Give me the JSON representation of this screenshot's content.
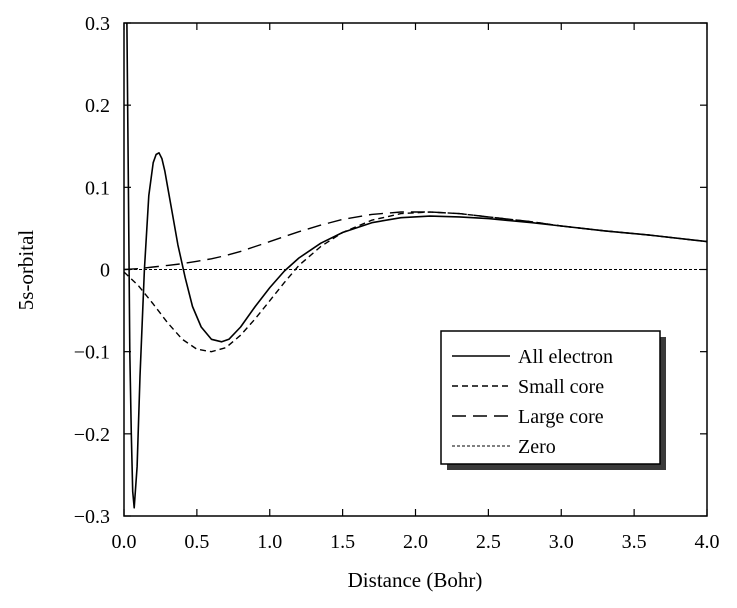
{
  "chart_data": {
    "type": "line",
    "title": "",
    "xlabel": "Distance (Bohr)",
    "ylabel": "5s-orbital",
    "xlim": [
      0,
      4.0
    ],
    "ylim": [
      -0.3,
      0.3
    ],
    "x_ticks": [
      0.0,
      0.5,
      1.0,
      1.5,
      2.0,
      2.5,
      3.0,
      3.5,
      4.0
    ],
    "x_tick_labels": [
      "0.0",
      "0.5",
      "1.0",
      "1.5",
      "2.0",
      "2.5",
      "3.0",
      "3.5",
      "4.0"
    ],
    "y_ticks": [
      -0.3,
      -0.2,
      -0.1,
      0,
      0.1,
      0.2,
      0.3
    ],
    "y_tick_labels": [
      "−0.3",
      "−0.2",
      "−0.1",
      "0",
      "0.1",
      "0.2",
      "0.3"
    ],
    "grid": false,
    "legend_position": "lower-right",
    "series": [
      {
        "name": "All electron",
        "style": "solid",
        "x": [
          0.02,
          0.03,
          0.04,
          0.05,
          0.06,
          0.07,
          0.09,
          0.11,
          0.14,
          0.17,
          0.2,
          0.22,
          0.24,
          0.26,
          0.28,
          0.3,
          0.33,
          0.37,
          0.42,
          0.47,
          0.53,
          0.6,
          0.67,
          0.72,
          0.8,
          0.9,
          1.0,
          1.1,
          1.2,
          1.35,
          1.5,
          1.7,
          1.9,
          2.1,
          2.3,
          2.5,
          2.8,
          3.0,
          3.3,
          3.6,
          4.0
        ],
        "y": [
          0.3,
          0.1,
          -0.1,
          -0.2,
          -0.27,
          -0.29,
          -0.24,
          -0.13,
          0.0,
          0.09,
          0.13,
          0.14,
          0.142,
          0.135,
          0.12,
          0.1,
          0.07,
          0.03,
          -0.01,
          -0.045,
          -0.07,
          -0.085,
          -0.088,
          -0.085,
          -0.07,
          -0.045,
          -0.022,
          -0.002,
          0.014,
          0.032,
          0.045,
          0.057,
          0.063,
          0.065,
          0.064,
          0.062,
          0.057,
          0.053,
          0.047,
          0.042,
          0.034
        ]
      },
      {
        "name": "Small core",
        "style": "short-dash",
        "x": [
          0.0,
          0.1,
          0.2,
          0.3,
          0.4,
          0.5,
          0.6,
          0.7,
          0.8,
          0.9,
          1.0,
          1.1,
          1.2,
          1.35,
          1.5,
          1.7,
          1.9,
          2.1,
          2.3,
          2.5,
          2.8,
          3.0,
          3.3,
          3.6,
          4.0
        ],
        "y": [
          -0.003,
          -0.02,
          -0.042,
          -0.065,
          -0.085,
          -0.097,
          -0.1,
          -0.095,
          -0.08,
          -0.06,
          -0.038,
          -0.016,
          0.005,
          0.028,
          0.045,
          0.06,
          0.068,
          0.07,
          0.068,
          0.064,
          0.058,
          0.053,
          0.047,
          0.042,
          0.034
        ]
      },
      {
        "name": "Large core",
        "style": "long-dash",
        "x": [
          0.0,
          0.1,
          0.2,
          0.3,
          0.4,
          0.5,
          0.6,
          0.7,
          0.8,
          0.9,
          1.0,
          1.1,
          1.2,
          1.35,
          1.5,
          1.7,
          1.9,
          2.1,
          2.3,
          2.5,
          2.8,
          3.0,
          3.3,
          3.6,
          4.0
        ],
        "y": [
          0.0,
          0.001,
          0.003,
          0.005,
          0.007,
          0.01,
          0.013,
          0.017,
          0.022,
          0.028,
          0.034,
          0.04,
          0.046,
          0.054,
          0.061,
          0.067,
          0.07,
          0.07,
          0.068,
          0.064,
          0.058,
          0.053,
          0.047,
          0.042,
          0.034
        ]
      },
      {
        "name": "Zero",
        "style": "fine-dash",
        "x": [
          0.0,
          4.0
        ],
        "y": [
          0.0,
          0.0
        ]
      }
    ]
  }
}
